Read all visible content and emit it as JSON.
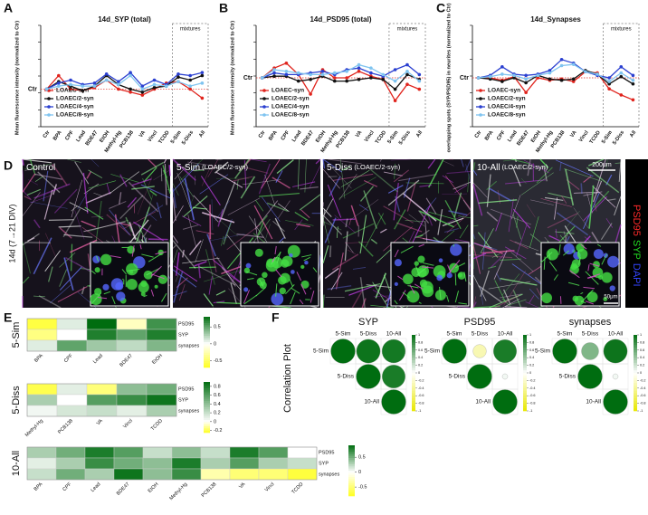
{
  "chart_data": [
    {
      "type": "line",
      "panel": "A",
      "title": "14d_SYP (total)",
      "y_label": "Mean fluorescence intensity (normalized to Ctr)",
      "categories": [
        "Ctr",
        "BPA",
        "CPF",
        "Lead",
        "BDE47",
        "EtOH",
        "Methyl-Hg",
        "PCB138",
        "VA",
        "Vincl",
        "TCDD",
        "5-Sim",
        "5-Diss",
        "All"
      ],
      "annotation": "mixtures",
      "ylim": [
        50,
        180
      ],
      "yticks": [
        {
          "value": 100,
          "label": "Ctr"
        }
      ],
      "legend": "lower left",
      "series": [
        {
          "name": "LOAEC-syn",
          "color": "#e0231c",
          "values": [
            100,
            118,
            100,
            98,
            102,
            112,
            100,
            96,
            92,
            100,
            108,
            110,
            100,
            88
          ]
        },
        {
          "name": "LOAEC/2-syn",
          "color": "#111111",
          "values": [
            100,
            110,
            104,
            98,
            104,
            118,
            106,
            100,
            96,
            102,
            104,
            116,
            112,
            118
          ]
        },
        {
          "name": "LOAEC/4-syn",
          "color": "#2a3fd0",
          "values": [
            100,
            108,
            112,
            106,
            108,
            120,
            110,
            122,
            104,
            112,
            106,
            120,
            118,
            122
          ]
        },
        {
          "name": "LOAEC/8-syn",
          "color": "#7fc4f0",
          "values": [
            100,
            104,
            106,
            104,
            104,
            112,
            106,
            118,
            100,
            106,
            104,
            110,
            104,
            108
          ]
        }
      ]
    },
    {
      "type": "line",
      "panel": "B",
      "title": "14d_PSD95 (total)",
      "y_label": "Mean fluorescence intensity (normalized to Ctr)",
      "categories": [
        "Ctr",
        "BPA",
        "CPF",
        "Lead",
        "BDE47",
        "EtOH",
        "Methyl-Hg",
        "PCB138",
        "VA",
        "Vincl",
        "TCDD",
        "5-Sim",
        "5-Diss",
        "All"
      ],
      "annotation": "mixtures",
      "ylim": [
        40,
        160
      ],
      "yticks": [
        {
          "value": 100,
          "label": "Ctr"
        }
      ],
      "legend": "lower left",
      "series": [
        {
          "name": "LOAEC-syn",
          "color": "#e0231c",
          "values": [
            100,
            112,
            118,
            104,
            80,
            110,
            100,
            100,
            108,
            102,
            98,
            72,
            92,
            86
          ]
        },
        {
          "name": "LOAEC/2-syn",
          "color": "#111111",
          "values": [
            100,
            102,
            102,
            96,
            98,
            102,
            96,
            96,
            98,
            100,
            98,
            86,
            104,
            98
          ]
        },
        {
          "name": "LOAEC/4-syn",
          "color": "#2a3fd0",
          "values": [
            100,
            106,
            104,
            104,
            106,
            108,
            104,
            110,
            112,
            106,
            102,
            110,
            116,
            104
          ]
        },
        {
          "name": "LOAEC/8-syn",
          "color": "#7fc4f0",
          "values": [
            100,
            110,
            108,
            106,
            104,
            104,
            106,
            108,
            116,
            112,
            104,
            96,
            108,
            96
          ]
        }
      ]
    },
    {
      "type": "line",
      "panel": "C",
      "title": "14d_Synapses",
      "y_label": "overlapping spots (SYP/PSD95) in neurites (normalized to Ctr)",
      "categories": [
        "Ctr",
        "BPA",
        "CPF",
        "Lead",
        "BDE47",
        "EtOH",
        "Methyl-Hg",
        "PCB138",
        "VA",
        "Vincl",
        "TCDD",
        "5-Sim",
        "5-Diss",
        "All"
      ],
      "annotation": "mixtures",
      "ylim": [
        20,
        180
      ],
      "yticks": [
        {
          "value": 100,
          "label": "Ctr"
        }
      ],
      "legend": "lower left",
      "series": [
        {
          "name": "LOAEC-syn",
          "color": "#e0231c",
          "values": [
            100,
            100,
            96,
            102,
            76,
            100,
            96,
            98,
            94,
            110,
            108,
            82,
            72,
            64
          ]
        },
        {
          "name": "LOAEC/2-syn",
          "color": "#111111",
          "values": [
            100,
            98,
            94,
            100,
            92,
            104,
            98,
            96,
            98,
            112,
            106,
            90,
            102,
            90
          ]
        },
        {
          "name": "LOAEC/4-syn",
          "color": "#2a3fd0",
          "values": [
            100,
            104,
            118,
            106,
            104,
            106,
            112,
            130,
            124,
            110,
            104,
            100,
            118,
            104
          ]
        },
        {
          "name": "LOAEC/8-syn",
          "color": "#7fc4f0",
          "values": [
            100,
            102,
            106,
            104,
            98,
            104,
            108,
            120,
            122,
            110,
            106,
            94,
            108,
            96
          ]
        }
      ]
    },
    {
      "type": "heatmap",
      "panel": "E",
      "title": "5-Sim",
      "rows": [
        "PSD95",
        "SYP",
        "synapses"
      ],
      "columns": [
        "BPA",
        "CPF",
        "Lead",
        "BDE47",
        "EtOH"
      ],
      "values": [
        [
          -0.6,
          0.1,
          0.8,
          -0.2,
          0.6
        ],
        [
          -0.4,
          0.0,
          0.7,
          0.5,
          0.7
        ],
        [
          0.1,
          0.5,
          0.3,
          0.2,
          0.4
        ]
      ],
      "zlim": [
        -0.7,
        0.8
      ],
      "zticks": [
        0.5,
        0,
        -0.5
      ],
      "colors": [
        "#ffff22",
        "#ffffff",
        "#006d10"
      ]
    },
    {
      "type": "heatmap",
      "title": "5-Diss",
      "rows": [
        "PSD95",
        "SYP",
        "synapses"
      ],
      "columns": [
        "Methyl-Hg",
        "PCB138",
        "VA",
        "Vincl",
        "TCDD"
      ],
      "values": [
        [
          -0.2,
          0.1,
          -0.15,
          0.4,
          0.5
        ],
        [
          0.3,
          0.0,
          0.6,
          0.7,
          0.85
        ],
        [
          0.05,
          0.15,
          0.2,
          0.1,
          0.3
        ]
      ],
      "zlim": [
        -0.25,
        0.9
      ],
      "zticks": [
        0.8,
        0.6,
        0.4,
        0.2,
        0,
        -0.2
      ],
      "colors": [
        "#ffff22",
        "#ffffff",
        "#006d10"
      ]
    },
    {
      "type": "heatmap",
      "title": "10-All",
      "rows": [
        "PSD95",
        "SYP",
        "synapses"
      ],
      "columns": [
        "BPA",
        "CPF",
        "Lead",
        "BDE47",
        "EtOH",
        "Methyl-Hg",
        "PCB138",
        "VA",
        "Vincl",
        "TCDD"
      ],
      "values": [
        [
          0.3,
          0.5,
          0.8,
          0.6,
          0.2,
          0.4,
          0.2,
          0.8,
          0.6,
          0.0
        ],
        [
          0.1,
          0.3,
          0.7,
          0.5,
          0.4,
          0.8,
          0.3,
          0.6,
          0.3,
          0.2
        ],
        [
          0.2,
          0.5,
          0.3,
          0.85,
          0.4,
          0.7,
          -0.3,
          -0.5,
          -0.5,
          -0.7
        ]
      ],
      "zlim": [
        -0.8,
        0.9
      ],
      "zticks": [
        0.5,
        0,
        -0.5
      ],
      "colors": [
        "#ffff22",
        "#ffffff",
        "#006d10"
      ]
    },
    {
      "type": "correlation",
      "panel": "F",
      "side_label": "Correlation Plot",
      "title": "SYP",
      "labels": [
        "5-Sim",
        "5-Diss",
        "10-All"
      ],
      "values": [
        [
          1,
          0.95,
          0.92
        ],
        [
          null,
          1,
          0.9
        ],
        [
          null,
          null,
          1
        ]
      ],
      "zlim": [
        -1,
        1
      ],
      "zticks": [
        1,
        0.8,
        0.6,
        0.4,
        0.2,
        0,
        -0.2,
        -0.4,
        -0.6,
        -0.8,
        -1
      ],
      "colors": [
        "#e8e800",
        "#ffffff",
        "#006d10"
      ]
    },
    {
      "type": "correlation",
      "title": "PSD95",
      "labels": [
        "5-Sim",
        "5-Diss",
        "10-All"
      ],
      "values": [
        [
          1,
          -0.3,
          0.9
        ],
        [
          null,
          1,
          0.05
        ],
        [
          null,
          null,
          1
        ]
      ],
      "zlim": [
        -1,
        1
      ],
      "zticks": [
        1,
        0.8,
        0.6,
        0.4,
        0.2,
        0,
        -0.2,
        -0.4,
        -0.6,
        -0.8,
        -1
      ],
      "colors": [
        "#e8e800",
        "#ffffff",
        "#006d10"
      ]
    },
    {
      "type": "correlation",
      "title": "synapses",
      "labels": [
        "5-Sim",
        "5-Diss",
        "10-All"
      ],
      "values": [
        [
          1,
          0.5,
          0.95
        ],
        [
          null,
          1,
          0.05
        ],
        [
          null,
          null,
          1
        ]
      ],
      "zlim": [
        -1,
        1
      ],
      "zticks": [
        1,
        0.8,
        0.6,
        0.4,
        0.2,
        0,
        -0.2,
        -0.4,
        -0.6,
        -0.8,
        -1
      ],
      "colors": [
        "#e8e800",
        "#ffffff",
        "#006d10"
      ]
    }
  ],
  "panel_d": {
    "letter": "D",
    "side_label": "14d (7→21 DIV)",
    "images": [
      {
        "label": "Control"
      },
      {
        "label": "5-Sim",
        "sublabel": "(LOAEC/2-syn)"
      },
      {
        "label": "5-Diss",
        "sublabel": "(LOAEC/2-syn)"
      },
      {
        "label": "10-All",
        "sublabel": "(LOAEC/2-syn)"
      }
    ],
    "scale_bars": [
      "200μm",
      "50μm"
    ],
    "channels": [
      {
        "name": "PSD95",
        "color": "#ff2a2a"
      },
      {
        "name": "SYP",
        "color": "#22dd22"
      },
      {
        "name": "DAPI",
        "color": "#3344ff"
      }
    ]
  }
}
